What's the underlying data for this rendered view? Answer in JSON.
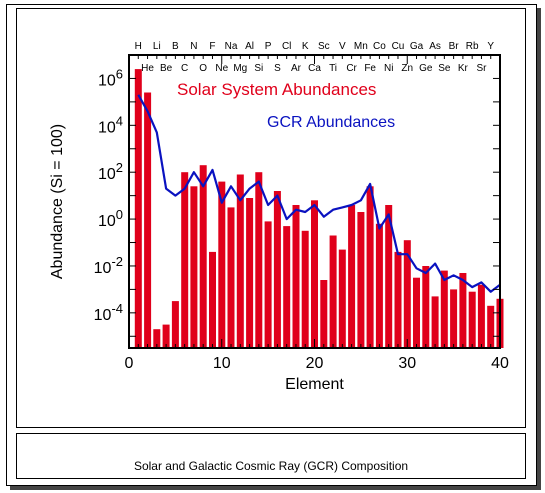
{
  "caption": "Solar and Galactic Cosmic Ray (GCR) Composition",
  "chart_data": {
    "type": "bar",
    "title": "",
    "xlabel": "Element",
    "ylabel": "Abundance (Si = 100)",
    "xlim": [
      0,
      40
    ],
    "ylim_log10": [
      -5.5,
      7
    ],
    "log_scale_y": true,
    "x_ticks": [
      0,
      10,
      20,
      30,
      40
    ],
    "y_ticks": [
      {
        "label_base": "10",
        "exp": "6",
        "value_log10": 6
      },
      {
        "label_base": "10",
        "exp": "4",
        "value_log10": 4
      },
      {
        "label_base": "10",
        "exp": "2",
        "value_log10": 2
      },
      {
        "label_base": "10",
        "exp": "0",
        "value_log10": 0
      },
      {
        "label_base": "10",
        "exp": "-2",
        "value_log10": -2
      },
      {
        "label_base": "10",
        "exp": "-4",
        "value_log10": -4
      }
    ],
    "top_labels": [
      "H",
      "B",
      "N",
      "Na",
      "Al",
      "P",
      "Cl",
      "K",
      "Sc",
      "V",
      "Mn",
      "Co",
      "Cu",
      "Ga",
      "As",
      "Br",
      "Rb",
      "Y"
    ],
    "bottom_labels": [
      "He",
      "Be",
      "C",
      "O",
      "Ne",
      "Mg",
      "Si",
      "S",
      "Ar",
      "Ca",
      "Ti",
      "Cr",
      "Fe",
      "Ni",
      "Zn",
      "Ge",
      "Se",
      "Kr",
      "Sr"
    ],
    "extra_top_labels": [
      "Li",
      "F"
    ],
    "series": [
      {
        "name": "Solar System Abundances",
        "color": "#e0001b",
        "kind": "bar",
        "x": [
          1,
          2,
          3,
          4,
          5,
          6,
          7,
          8,
          9,
          10,
          11,
          12,
          13,
          14,
          15,
          16,
          17,
          18,
          19,
          20,
          21,
          22,
          23,
          24,
          25,
          26,
          27,
          28,
          29,
          30,
          31,
          32,
          33,
          34,
          35,
          36,
          37,
          38,
          39,
          40
        ],
        "log10_values": [
          6.4,
          5.4,
          -4.7,
          -4.5,
          -3.5,
          2.0,
          1.4,
          2.3,
          -1.4,
          1.6,
          0.5,
          1.9,
          0.9,
          2.0,
          -0.1,
          1.2,
          -0.3,
          0.6,
          -0.5,
          0.8,
          -2.6,
          -0.7,
          -1.3,
          0.6,
          0.3,
          1.4,
          -0.2,
          0.6,
          -1.4,
          -0.9,
          -2.5,
          -2.0,
          -3.3,
          -2.2,
          -3.0,
          -2.3,
          -3.1,
          -2.8,
          -3.7,
          -3.4
        ]
      },
      {
        "name": "GCR Abundances",
        "color": "#0a12c0",
        "kind": "line",
        "x": [
          1,
          2,
          3,
          4,
          5,
          6,
          7,
          8,
          9,
          10,
          11,
          12,
          13,
          14,
          15,
          16,
          17,
          18,
          19,
          20,
          21,
          22,
          23,
          24,
          25,
          26,
          27,
          28,
          29,
          30,
          31,
          32,
          33,
          34,
          35,
          36,
          37,
          38,
          39,
          40
        ],
        "log10_values": [
          5.3,
          4.6,
          3.7,
          1.3,
          1.0,
          1.3,
          2.0,
          1.4,
          2.1,
          0.7,
          1.4,
          0.8,
          1.3,
          1.6,
          0.6,
          1.0,
          0.0,
          0.4,
          0.3,
          0.6,
          0.1,
          0.4,
          0.5,
          0.6,
          0.8,
          1.5,
          -0.4,
          0.2,
          -1.5,
          -1.5,
          -2.1,
          -2.3,
          -1.9,
          -2.6,
          -2.4,
          -2.6,
          -2.9,
          -2.7,
          -3.1,
          -2.8
        ]
      }
    ]
  }
}
